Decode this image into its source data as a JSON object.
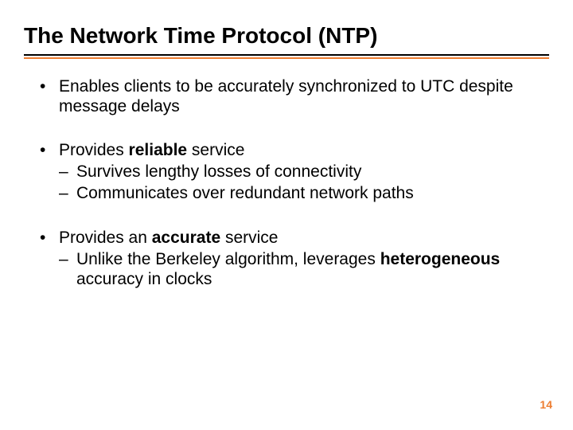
{
  "accent_color": "#ed7d31",
  "text_color": "#000000",
  "background_color": "#ffffff",
  "title": "The Network Time Protocol (NTP)",
  "bullets": [
    {
      "text_parts": [
        {
          "t": "Enables clients to be accurately synchronized to UTC despite message delays",
          "bold": false
        }
      ],
      "subs": []
    },
    {
      "text_parts": [
        {
          "t": "Provides ",
          "bold": false
        },
        {
          "t": "reliable",
          "bold": true
        },
        {
          "t": " service",
          "bold": false
        }
      ],
      "subs": [
        {
          "parts": [
            {
              "t": "Survives lengthy losses of connectivity",
              "bold": false
            }
          ]
        },
        {
          "parts": [
            {
              "t": "Communicates over redundant network paths",
              "bold": false
            }
          ]
        }
      ]
    },
    {
      "text_parts": [
        {
          "t": "Provides an ",
          "bold": false
        },
        {
          "t": "accurate",
          "bold": true
        },
        {
          "t": " service",
          "bold": false
        }
      ],
      "subs": [
        {
          "parts": [
            {
              "t": "Unlike the Berkeley algorithm, leverages ",
              "bold": false
            },
            {
              "t": "heterogeneous",
              "bold": true
            },
            {
              "t": " accuracy in clocks",
              "bold": false
            }
          ]
        }
      ]
    }
  ],
  "page_number": "14"
}
